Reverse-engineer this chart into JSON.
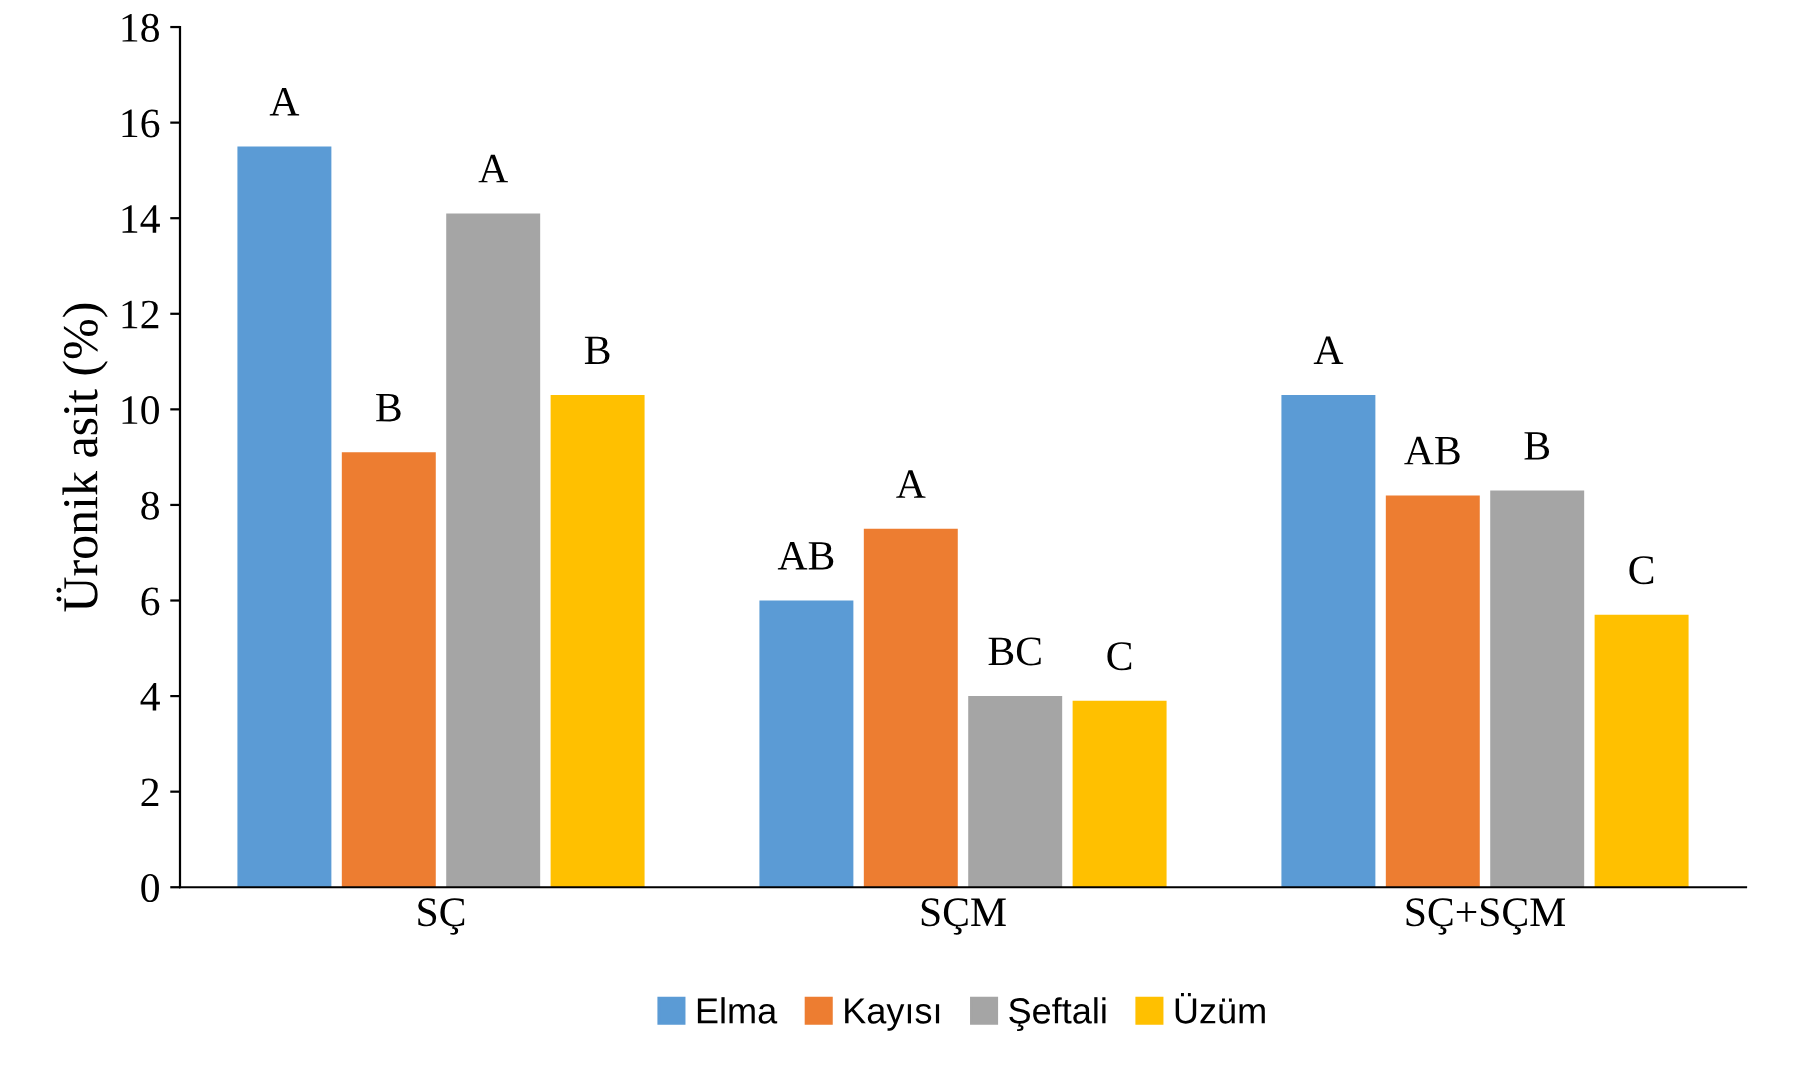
{
  "chart_data": {
    "type": "bar",
    "ylabel": "Üronik asit (%)",
    "categories": [
      "SÇ",
      "SÇM",
      "SÇ+SÇM"
    ],
    "series": [
      {
        "name": "Elma",
        "color": "#5b9bd5",
        "values": [
          15.5,
          6.0,
          10.3
        ],
        "value_labels": [
          "A",
          "AB",
          "A"
        ]
      },
      {
        "name": "Kayısı",
        "color": "#ed7d31",
        "values": [
          9.1,
          7.5,
          8.2
        ],
        "value_labels": [
          "B",
          "A",
          "AB"
        ]
      },
      {
        "name": "Şeftali",
        "color": "#a5a5a5",
        "values": [
          14.1,
          4.0,
          8.3
        ],
        "value_labels": [
          "A",
          "BC",
          "B"
        ]
      },
      {
        "name": "Üzüm",
        "color": "#ffc000",
        "values": [
          10.3,
          3.9,
          5.7
        ],
        "value_labels": [
          "B",
          "C",
          "C"
        ]
      }
    ],
    "ylim": [
      0,
      18
    ],
    "yticks": [
      0,
      2,
      4,
      6,
      8,
      10,
      12,
      14,
      16,
      18
    ],
    "grid": false,
    "legend": "bottom"
  }
}
